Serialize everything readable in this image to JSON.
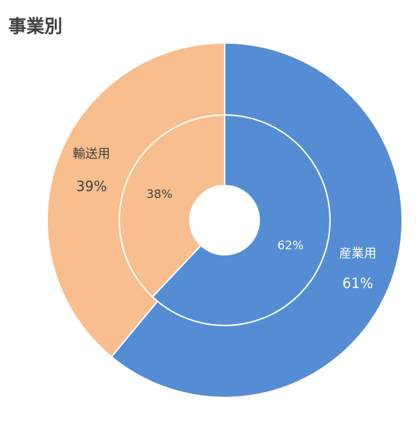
{
  "title": "事業別",
  "colors": {
    "industrial": "#548DD4",
    "transport": "#F8BE8E",
    "separator": "#FFFFFF"
  },
  "chart_data": {
    "type": "pie",
    "title": "事業別",
    "categories": [
      "産業用",
      "輸送用"
    ],
    "rings": [
      {
        "position": "inner",
        "values": [
          62,
          38
        ],
        "labels": [
          "62%",
          "38%"
        ]
      },
      {
        "position": "outer",
        "values": [
          61,
          39
        ],
        "labels": [
          "61%",
          "39%"
        ]
      }
    ],
    "category_labels_on": "outer"
  }
}
